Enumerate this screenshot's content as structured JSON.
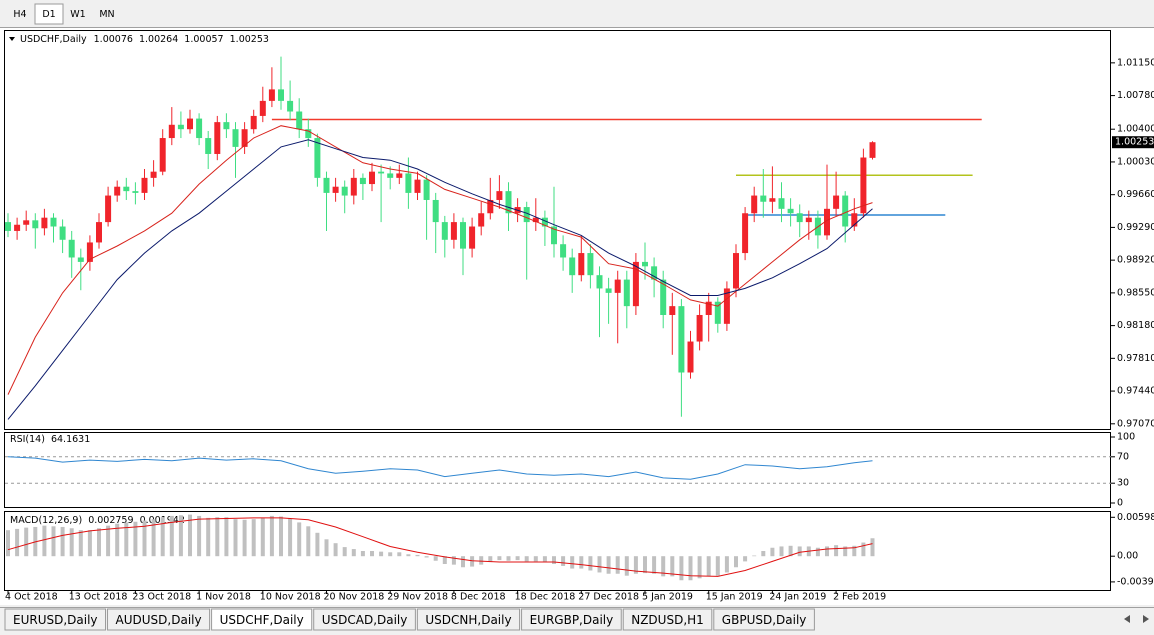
{
  "timeframes": [
    "H4",
    "D1",
    "W1",
    "MN"
  ],
  "active_timeframe": 1,
  "tabs": [
    "EURUSD,Daily",
    "AUDUSD,Daily",
    "USDCHF,Daily",
    "USDCAD,Daily",
    "USDCNH,Daily",
    "EURGBP,Daily",
    "NZDUSD,H1",
    "GBPUSD,Daily"
  ],
  "active_tab": 2,
  "chart_data": {
    "type": "candlestick",
    "symbol_label": "USDCHF,Daily",
    "up_color": "#f0242b",
    "down_color": "#3fde82",
    "ylim": [
      0.97,
      1.0151
    ],
    "yticks": [
      {
        "value": 1.0115,
        "label": "1.01150"
      },
      {
        "value": 1.0078,
        "label": "1.00780"
      },
      {
        "value": 1.004,
        "label": "1.00400"
      },
      {
        "value": 1.0003,
        "label": "1.00030"
      },
      {
        "value": 0.9966,
        "label": "0.99660"
      },
      {
        "value": 0.9929,
        "label": "0.99290"
      },
      {
        "value": 0.9892,
        "label": "0.98920"
      },
      {
        "value": 0.9855,
        "label": "0.98550"
      },
      {
        "value": 0.9818,
        "label": "0.98180"
      },
      {
        "value": 0.9781,
        "label": "0.97810"
      },
      {
        "value": 0.9744,
        "label": "0.97440"
      },
      {
        "value": 0.9707,
        "label": "0.97070"
      }
    ],
    "date_ticks": [
      {
        "value": 0,
        "label": "4 Oct 2018"
      },
      {
        "value": 7,
        "label": "13 Oct 2018"
      },
      {
        "value": 14,
        "label": "23 Oct 2018"
      },
      {
        "value": 21,
        "label": "1 Nov 2018"
      },
      {
        "value": 28,
        "label": "10 Nov 2018"
      },
      {
        "value": 35,
        "label": "20 Nov 2018"
      },
      {
        "value": 42,
        "label": "29 Nov 2018"
      },
      {
        "value": 49,
        "label": "8 Dec 2018"
      },
      {
        "value": 56,
        "label": "18 Dec 2018"
      },
      {
        "value": 63,
        "label": "27 Dec 2018"
      },
      {
        "value": 70,
        "label": "5 Jan 2019"
      },
      {
        "value": 77,
        "label": "15 Jan 2019"
      },
      {
        "value": 84,
        "label": "24 Jan 2019"
      },
      {
        "value": 91,
        "label": "2 Feb 2019"
      }
    ],
    "candles": [
      [
        0.9935,
        0.9945,
        0.9918,
        0.9925
      ],
      [
        0.9925,
        0.994,
        0.9915,
        0.9932
      ],
      [
        0.9932,
        0.9948,
        0.9925,
        0.9937
      ],
      [
        0.9937,
        0.9945,
        0.9905,
        0.9928
      ],
      [
        0.9928,
        0.995,
        0.992,
        0.994
      ],
      [
        0.994,
        0.9945,
        0.9912,
        0.993
      ],
      [
        0.993,
        0.9938,
        0.99,
        0.9915
      ],
      [
        0.9915,
        0.9925,
        0.9872,
        0.9895
      ],
      [
        0.9895,
        0.9905,
        0.9858,
        0.989
      ],
      [
        0.989,
        0.992,
        0.988,
        0.9912
      ],
      [
        0.9912,
        0.9945,
        0.9905,
        0.9935
      ],
      [
        0.9935,
        0.9975,
        0.993,
        0.9965
      ],
      [
        0.9965,
        0.9982,
        0.9958,
        0.9975
      ],
      [
        0.9975,
        0.9985,
        0.996,
        0.997
      ],
      [
        0.997,
        0.998,
        0.9955,
        0.9968
      ],
      [
        0.9968,
        0.9995,
        0.996,
        0.9985
      ],
      [
        0.9985,
        1.0005,
        0.9975,
        0.9992
      ],
      [
        0.9992,
        1.004,
        0.9988,
        1.003
      ],
      [
        1.003,
        1.0065,
        1.0022,
        1.0045
      ],
      [
        1.0045,
        1.006,
        1.003,
        1.004
      ],
      [
        1.004,
        1.0062,
        1.0035,
        1.0052
      ],
      [
        1.0052,
        1.0058,
        1.0022,
        1.003
      ],
      [
        1.003,
        1.0038,
        0.9995,
        1.0012
      ],
      [
        1.0012,
        1.0055,
        1.0005,
        1.0048
      ],
      [
        1.0048,
        1.0058,
        1.003,
        1.004
      ],
      [
        1.004,
        1.0048,
        0.9985,
        1.002
      ],
      [
        1.002,
        1.0048,
        1.0012,
        1.004
      ],
      [
        1.004,
        1.0062,
        1.0035,
        1.0055
      ],
      [
        1.0055,
        1.0088,
        1.0048,
        1.0072
      ],
      [
        1.0072,
        1.011,
        1.0065,
        1.0085
      ],
      [
        1.0085,
        1.0122,
        1.0062,
        1.0072
      ],
      [
        1.0072,
        1.0095,
        1.005,
        1.006
      ],
      [
        1.006,
        1.0075,
        1.003,
        1.004
      ],
      [
        1.004,
        1.0052,
        1.002,
        1.003
      ],
      [
        1.003,
        1.0035,
        0.9975,
        0.9985
      ],
      [
        0.9985,
        0.9992,
        0.9925,
        0.9968
      ],
      [
        0.9968,
        0.9985,
        0.9958,
        0.9975
      ],
      [
        0.9975,
        0.9982,
        0.9945,
        0.9965
      ],
      [
        0.9965,
        0.9995,
        0.9955,
        0.9985
      ],
      [
        0.9985,
        0.999,
        0.996,
        0.9978
      ],
      [
        0.9978,
        1.0002,
        0.997,
        0.9992
      ],
      [
        0.9992,
        1.0,
        0.9935,
        0.999
      ],
      [
        0.999,
        0.9998,
        0.9972,
        0.9985
      ],
      [
        0.9985,
        1.0,
        0.9978,
        0.999
      ],
      [
        0.999,
        1.0008,
        0.995,
        0.9968
      ],
      [
        0.9968,
        0.9992,
        0.996,
        0.9983
      ],
      [
        0.9983,
        0.9988,
        0.9915,
        0.996
      ],
      [
        0.996,
        0.9968,
        0.99,
        0.9935
      ],
      [
        0.9935,
        0.9942,
        0.9895,
        0.9915
      ],
      [
        0.9915,
        0.9945,
        0.9905,
        0.9935
      ],
      [
        0.9935,
        0.994,
        0.9875,
        0.9905
      ],
      [
        0.9905,
        0.994,
        0.9895,
        0.993
      ],
      [
        0.993,
        0.9958,
        0.992,
        0.9945
      ],
      [
        0.9945,
        0.9985,
        0.9938,
        0.996
      ],
      [
        0.996,
        0.9988,
        0.995,
        0.997
      ],
      [
        0.997,
        0.998,
        0.9925,
        0.9945
      ],
      [
        0.9945,
        0.9962,
        0.9935,
        0.9952
      ],
      [
        0.9952,
        0.9958,
        0.987,
        0.9935
      ],
      [
        0.9935,
        0.9962,
        0.9925,
        0.994
      ],
      [
        0.994,
        0.9948,
        0.9908,
        0.993
      ],
      [
        0.993,
        0.9975,
        0.9895,
        0.991
      ],
      [
        0.991,
        0.992,
        0.988,
        0.9895
      ],
      [
        0.9895,
        0.9905,
        0.9855,
        0.9875
      ],
      [
        0.9875,
        0.992,
        0.9868,
        0.99
      ],
      [
        0.99,
        0.991,
        0.986,
        0.9875
      ],
      [
        0.9875,
        0.9885,
        0.9805,
        0.986
      ],
      [
        0.986,
        0.9872,
        0.982,
        0.9855
      ],
      [
        0.9855,
        0.988,
        0.9798,
        0.987
      ],
      [
        0.987,
        0.988,
        0.9815,
        0.984
      ],
      [
        0.984,
        0.99,
        0.983,
        0.989
      ],
      [
        0.989,
        0.9912,
        0.987,
        0.9885
      ],
      [
        0.9885,
        0.9895,
        0.985,
        0.987
      ],
      [
        0.987,
        0.988,
        0.9815,
        0.983
      ],
      [
        0.983,
        0.9855,
        0.9785,
        0.984
      ],
      [
        0.984,
        0.9848,
        0.9715,
        0.9765
      ],
      [
        0.9765,
        0.9812,
        0.9758,
        0.98
      ],
      [
        0.98,
        0.9842,
        0.979,
        0.983
      ],
      [
        0.983,
        0.9855,
        0.98,
        0.9845
      ],
      [
        0.9845,
        0.985,
        0.981,
        0.982
      ],
      [
        0.982,
        0.9868,
        0.9812,
        0.986
      ],
      [
        0.986,
        0.991,
        0.985,
        0.99
      ],
      [
        0.99,
        0.9952,
        0.9892,
        0.9945
      ],
      [
        0.9945,
        0.9975,
        0.9935,
        0.9965
      ],
      [
        0.9965,
        0.9995,
        0.994,
        0.9958
      ],
      [
        0.9958,
        0.9998,
        0.9945,
        0.9962
      ],
      [
        0.9962,
        0.998,
        0.9935,
        0.995
      ],
      [
        0.995,
        0.9962,
        0.993,
        0.9945
      ],
      [
        0.9945,
        0.9955,
        0.9918,
        0.9935
      ],
      [
        0.9935,
        0.9948,
        0.9915,
        0.994
      ],
      [
        0.994,
        0.9948,
        0.9905,
        0.992
      ],
      [
        0.992,
        1.0,
        0.9915,
        0.995
      ],
      [
        0.995,
        0.9992,
        0.9942,
        0.9965
      ],
      [
        0.9965,
        0.997,
        0.9912,
        0.993
      ],
      [
        0.993,
        0.9962,
        0.9925,
        0.9945
      ],
      [
        0.9945,
        1.0018,
        0.994,
        1.0008
      ],
      [
        1.00076,
        1.00264,
        1.00057,
        1.00253
      ]
    ],
    "moving_averages": [
      {
        "color": "#d8231c",
        "x": [
          0,
          3,
          6,
          9,
          12,
          15,
          18,
          21,
          24,
          27,
          30,
          33,
          36,
          39,
          42,
          45,
          48,
          51,
          54,
          57,
          60,
          63,
          66,
          69,
          72,
          75,
          78,
          81,
          84,
          87,
          90,
          93,
          95
        ],
        "values": [
          0.974,
          0.9805,
          0.9855,
          0.9893,
          0.9908,
          0.9925,
          0.9945,
          0.9978,
          1.0005,
          1.003,
          1.0044,
          1.0038,
          1.002,
          1.0002,
          0.9995,
          0.999,
          0.9972,
          0.9962,
          0.9952,
          0.994,
          0.9927,
          0.9918,
          0.9888,
          0.9882,
          0.9865,
          0.9847,
          0.984,
          0.9865,
          0.989,
          0.9915,
          0.9937,
          0.995,
          0.9957
        ]
      },
      {
        "color": "#0b1a6b",
        "x": [
          0,
          3,
          6,
          9,
          12,
          15,
          18,
          21,
          24,
          27,
          30,
          33,
          36,
          39,
          42,
          45,
          48,
          51,
          54,
          57,
          60,
          63,
          66,
          69,
          72,
          75,
          78,
          81,
          84,
          87,
          90,
          93,
          95
        ],
        "values": [
          0.9712,
          0.975,
          0.979,
          0.983,
          0.987,
          0.99,
          0.9925,
          0.9945,
          0.997,
          0.9995,
          1.002,
          1.0028,
          1.0018,
          1.0008,
          1.0005,
          0.9995,
          0.998,
          0.9967,
          0.9955,
          0.9945,
          0.9932,
          0.992,
          0.99,
          0.9885,
          0.9868,
          0.9852,
          0.9852,
          0.986,
          0.9872,
          0.9888,
          0.9905,
          0.9932,
          0.995
        ]
      }
    ],
    "levels": [
      {
        "price": 1.0051,
        "color": "#f23a2c",
        "x": [
          29,
          107
        ]
      },
      {
        "price": 0.9988,
        "color": "#b3c31c",
        "x": [
          80,
          106
        ]
      },
      {
        "price": 0.9943,
        "color": "#2e86d2",
        "x": [
          81,
          103
        ]
      }
    ],
    "rsi": {
      "name": "RSI(14)",
      "color": "#2f86d0",
      "ylim": [
        0,
        100
      ],
      "yticks": [
        100,
        70,
        30,
        0
      ],
      "levels": [
        70,
        30
      ],
      "x": [
        0,
        3,
        6,
        9,
        12,
        15,
        18,
        21,
        24,
        27,
        30,
        33,
        36,
        39,
        42,
        45,
        48,
        51,
        54,
        57,
        60,
        63,
        66,
        69,
        72,
        75,
        78,
        81,
        84,
        87,
        90,
        93,
        95
      ],
      "values": [
        70,
        68,
        62,
        65,
        63,
        66,
        64,
        68,
        65,
        67,
        64,
        52,
        45,
        48,
        52,
        50,
        40,
        45,
        50,
        44,
        42,
        44,
        40,
        47,
        38,
        36,
        44,
        58,
        56,
        52,
        55,
        61,
        64.1631
      ]
    },
    "macd": {
      "name": "MACD(12,26,9)",
      "hist_color": "#c0c0c0",
      "signal_color": "#e01010",
      "ylim": [
        -0.0052,
        0.0068
      ],
      "yticks": [
        0.005985,
        {
          "value": 0,
          "label": "0.00"
        },
        -0.003954
      ],
      "histogram": [
        0.004,
        0.0042,
        0.0044,
        0.0045,
        0.0047,
        0.0046,
        0.0045,
        0.0043,
        0.004,
        0.004,
        0.0043,
        0.0047,
        0.005,
        0.0052,
        0.0053,
        0.0055,
        0.0057,
        0.006,
        0.0062,
        0.0063,
        0.0064,
        0.0062,
        0.0059,
        0.006,
        0.006,
        0.0057,
        0.0056,
        0.0057,
        0.0059,
        0.0062,
        0.0061,
        0.0058,
        0.0052,
        0.0046,
        0.0036,
        0.0026,
        0.002,
        0.0014,
        0.0011,
        0.0008,
        0.0008,
        0.0007,
        0.0006,
        0.0006,
        0.0003,
        0.0002,
        -0.0002,
        -0.0007,
        -0.0012,
        -0.0013,
        -0.0017,
        -0.0016,
        -0.0013,
        -0.0009,
        -0.0006,
        -0.0007,
        -0.0006,
        -0.0008,
        -0.0008,
        -0.0009,
        -0.0012,
        -0.0015,
        -0.0019,
        -0.0019,
        -0.0022,
        -0.0025,
        -0.0027,
        -0.0027,
        -0.003,
        -0.0027,
        -0.0026,
        -0.0027,
        -0.0031,
        -0.0031,
        -0.0037,
        -0.0037,
        -0.0034,
        -0.0031,
        -0.003,
        -0.0025,
        -0.0017,
        -0.0008,
        0.0001,
        0.0008,
        0.0013,
        0.0015,
        0.0016,
        0.0015,
        0.0015,
        0.0013,
        0.0015,
        0.0017,
        0.0015,
        0.0016,
        0.0021,
        0.002759
      ],
      "signal_x": [
        0,
        3,
        6,
        9,
        12,
        15,
        18,
        21,
        24,
        27,
        30,
        33,
        36,
        39,
        42,
        45,
        48,
        51,
        54,
        57,
        60,
        63,
        66,
        69,
        72,
        75,
        78,
        81,
        84,
        87,
        90,
        93,
        95
      ],
      "signal": [
        0.001,
        0.0022,
        0.0032,
        0.0039,
        0.0043,
        0.0046,
        0.0052,
        0.0057,
        0.0058,
        0.0059,
        0.0059,
        0.0056,
        0.0045,
        0.003,
        0.0015,
        0.0006,
        -0.0001,
        -0.0007,
        -0.0009,
        -0.0009,
        -0.0009,
        -0.0013,
        -0.0018,
        -0.0023,
        -0.0026,
        -0.003,
        -0.0031,
        -0.0022,
        -0.0008,
        0.0006,
        0.0011,
        0.0013,
        0.001942
      ]
    }
  }
}
